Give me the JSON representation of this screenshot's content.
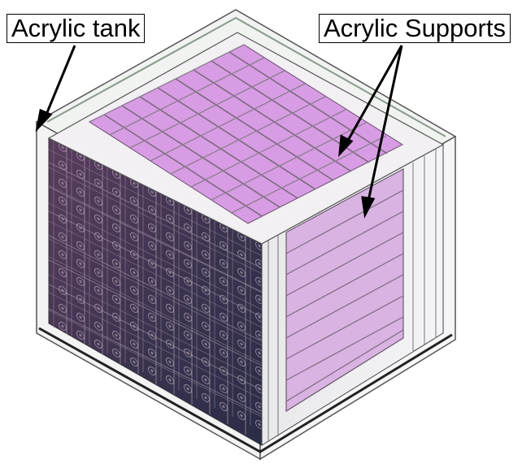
{
  "labels": {
    "tank": "Acrylic tank",
    "supports": "Acrylic Supports"
  },
  "colors": {
    "background": "#ffffff",
    "outline": "#4a4a4a",
    "top_panel": "#d99ae6",
    "right_panel": "#d6aee0",
    "left_face": "#4a3452",
    "left_face_dark": "#2c2738",
    "grid": "#606060"
  },
  "visual": {
    "description": "isometric detector with acrylic tank, pink acrylic support panels on top and right face, dark module grid on left face",
    "arrows": [
      "tank-arrow",
      "supports-arrow-top",
      "supports-arrow-right"
    ]
  }
}
